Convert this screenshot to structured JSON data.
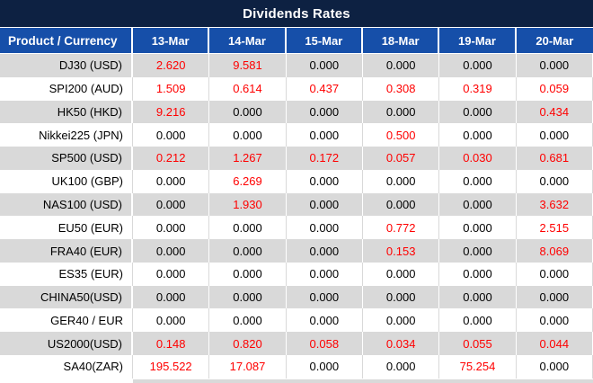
{
  "title": "Dividends Rates",
  "table": {
    "corner_header": "Product / Currency",
    "date_headers": [
      "13-Mar",
      "14-Mar",
      "15-Mar",
      "18-Mar",
      "19-Mar",
      "20-Mar"
    ],
    "rows": [
      {
        "product": "DJ30 (USD)",
        "values": [
          "2.620",
          "9.581",
          "0.000",
          "0.000",
          "0.000",
          "0.000"
        ]
      },
      {
        "product": "SPI200 (AUD)",
        "values": [
          "1.509",
          "0.614",
          "0.437",
          "0.308",
          "0.319",
          "0.059"
        ]
      },
      {
        "product": "HK50 (HKD)",
        "values": [
          "9.216",
          "0.000",
          "0.000",
          "0.000",
          "0.000",
          "0.434"
        ]
      },
      {
        "product": "Nikkei225 (JPN)",
        "values": [
          "0.000",
          "0.000",
          "0.000",
          "0.500",
          "0.000",
          "0.000"
        ]
      },
      {
        "product": "SP500 (USD)",
        "values": [
          "0.212",
          "1.267",
          "0.172",
          "0.057",
          "0.030",
          "0.681"
        ]
      },
      {
        "product": "UK100 (GBP)",
        "values": [
          "0.000",
          "6.269",
          "0.000",
          "0.000",
          "0.000",
          "0.000"
        ]
      },
      {
        "product": "NAS100 (USD)",
        "values": [
          "0.000",
          "1.930",
          "0.000",
          "0.000",
          "0.000",
          "3.632"
        ]
      },
      {
        "product": "EU50 (EUR)",
        "values": [
          "0.000",
          "0.000",
          "0.000",
          "0.772",
          "0.000",
          "2.515"
        ]
      },
      {
        "product": "FRA40 (EUR)",
        "values": [
          "0.000",
          "0.000",
          "0.000",
          "0.153",
          "0.000",
          "8.069"
        ]
      },
      {
        "product": "ES35 (EUR)",
        "values": [
          "0.000",
          "0.000",
          "0.000",
          "0.000",
          "0.000",
          "0.000"
        ]
      },
      {
        "product": "CHINA50(USD)",
        "values": [
          "0.000",
          "0.000",
          "0.000",
          "0.000",
          "0.000",
          "0.000"
        ]
      },
      {
        "product": "GER40 / EUR",
        "values": [
          "0.000",
          "0.000",
          "0.000",
          "0.000",
          "0.000",
          "0.000"
        ]
      },
      {
        "product": "US2000(USD)",
        "values": [
          "0.148",
          "0.820",
          "0.058",
          "0.034",
          "0.055",
          "0.044"
        ]
      },
      {
        "product": "SA40(ZAR)",
        "values": [
          "195.522",
          "17.087",
          "0.000",
          "0.000",
          "75.254",
          "0.000"
        ]
      }
    ]
  },
  "colors": {
    "title_bg": "#0d2142",
    "header_bg": "#164fa9",
    "header_text": "#ffffff",
    "row_alt_bg": "#d9d9d9",
    "row_bg": "#ffffff",
    "nonzero_value": "#ff0000",
    "zero_value": "#000000"
  }
}
